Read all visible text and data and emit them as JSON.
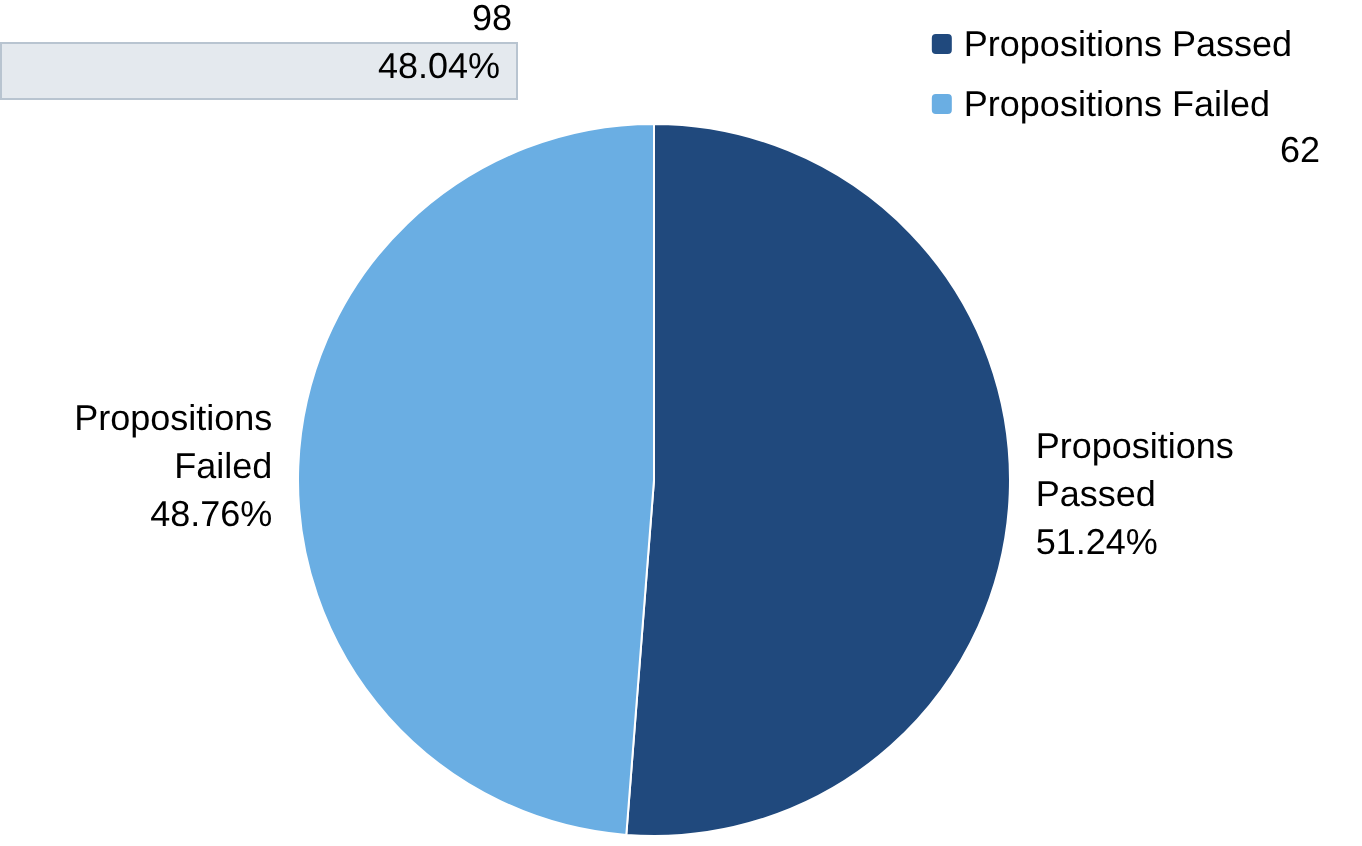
{
  "chart_data": {
    "type": "pie",
    "categories": [
      "Propositions Passed",
      "Propositions Failed"
    ],
    "values": [
      51.24,
      48.76
    ],
    "colors": [
      "#20497d",
      "#6aaee3"
    ],
    "value_labels": [
      "51.24%",
      "48.76%"
    ],
    "legend": "top right",
    "annotations": [
      "98",
      "48.04%",
      "62"
    ]
  }
}
